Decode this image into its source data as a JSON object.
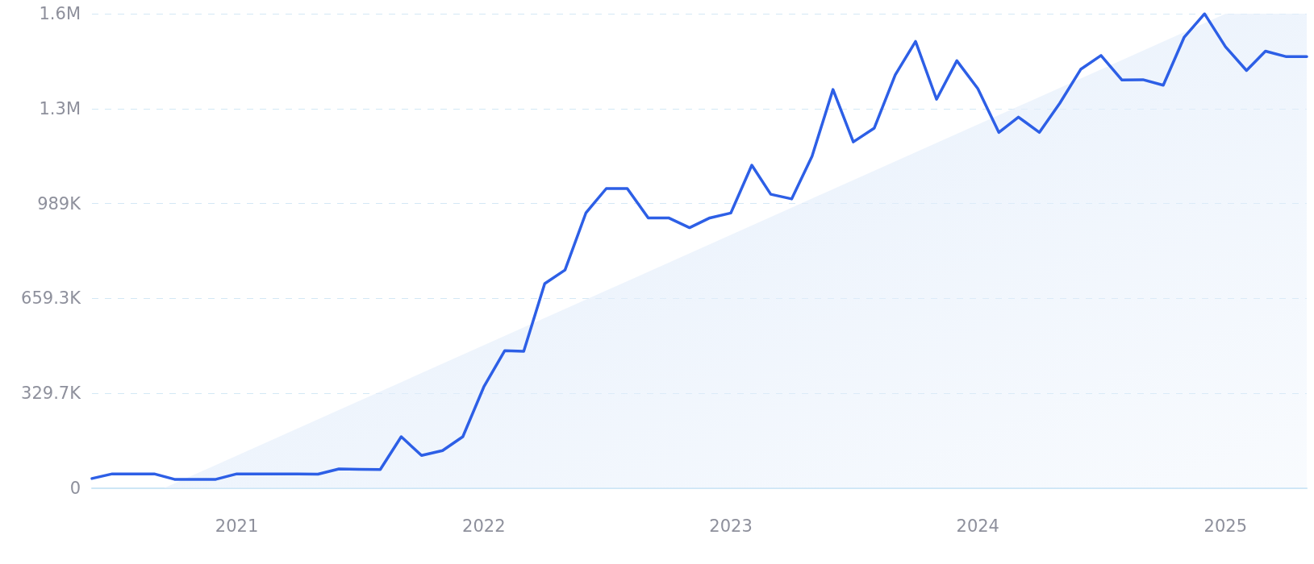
{
  "chart_data": {
    "type": "line",
    "marker": "none",
    "line_style": "solid",
    "grid": "y",
    "xlim": [
      "2020-06",
      "2025-05"
    ],
    "xticks": [
      "2021",
      "2022",
      "2023",
      "2024",
      "2025"
    ],
    "ylim": [
      0,
      1648250
    ],
    "yticks": [
      0,
      {
        "value": 329650,
        "label": "329.7K"
      },
      {
        "value": 659300,
        "label": "659.3K"
      },
      {
        "value": 988950,
        "label": "989K"
      },
      {
        "value": 1318600,
        "label": "1.3M"
      },
      {
        "value": 1648250,
        "label": "1.6M"
      }
    ],
    "series": [
      {
        "type": "area",
        "color": "#e4eefb",
        "x": [
          "2020-09-15",
          "2025-01",
          "2025-05"
        ],
        "values": [
          0,
          1648000,
          1648000
        ]
      },
      {
        "color": "#2d5fe6",
        "x": [
          "2020-06",
          "2020-07",
          "2020-08",
          "2020-09",
          "2020-10",
          "2020-11",
          "2020-12",
          "2021-01",
          "2021-02",
          "2021-03",
          "2021-04",
          "2021-05",
          "2021-06",
          "2021-07",
          "2021-08",
          "2021-09",
          "2021-10",
          "2021-11",
          "2021-12",
          "2022-01",
          "2022-02",
          "2022-03",
          "2022-04",
          "2022-05",
          "2022-06",
          "2022-07",
          "2022-08",
          "2022-09",
          "2022-10",
          "2022-11",
          "2022-12",
          "2023-01",
          "2023-02",
          "2023-03",
          "2023-04",
          "2023-05",
          "2023-06",
          "2023-07",
          "2023-08",
          "2023-09",
          "2023-10",
          "2023-11",
          "2023-12",
          "2024-01",
          "2024-02",
          "2024-03",
          "2024-04",
          "2024-05",
          "2024-06",
          "2024-07",
          "2024-08",
          "2024-09",
          "2024-10",
          "2024-11",
          "2024-12",
          "2025-01",
          "2025-02",
          "2025-03",
          "2025-04",
          "2025-05"
        ],
        "values": [
          34000,
          50000,
          50000,
          50000,
          31000,
          31000,
          31000,
          50000,
          50000,
          50000,
          50000,
          49000,
          67000,
          66000,
          65000,
          179000,
          114000,
          131000,
          179000,
          352000,
          478000,
          476000,
          711000,
          758000,
          957000,
          1041000,
          1041000,
          939000,
          939000,
          905000,
          939000,
          956000,
          1122000,
          1021000,
          1005000,
          1153000,
          1385000,
          1203000,
          1251000,
          1436000,
          1552000,
          1351000,
          1485000,
          1388000,
          1236000,
          1289000,
          1236000,
          1337000,
          1455000,
          1503000,
          1418000,
          1419000,
          1400000,
          1567000,
          1648000,
          1533000,
          1451000,
          1518000,
          1499000,
          1499000
        ]
      }
    ]
  }
}
